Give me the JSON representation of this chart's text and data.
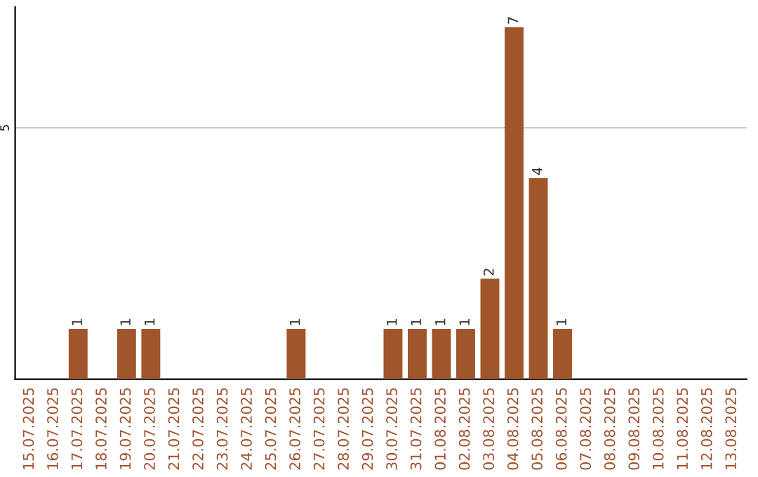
{
  "chart_data": {
    "type": "bar",
    "categories": [
      "15.07.2025",
      "16.07.2025",
      "17.07.2025",
      "18.07.2025",
      "19.07.2025",
      "20.07.2025",
      "21.07.2025",
      "22.07.2025",
      "23.07.2025",
      "24.07.2025",
      "25.07.2025",
      "26.07.2025",
      "27.07.2025",
      "28.07.2025",
      "29.07.2025",
      "30.07.2025",
      "31.07.2025",
      "01.08.2025",
      "02.08.2025",
      "03.08.2025",
      "04.08.2025",
      "05.08.2025",
      "06.08.2025",
      "07.08.2025",
      "08.08.2025",
      "09.08.2025",
      "10.08.2025",
      "11.08.2025",
      "12.08.2025",
      "13.08.2025"
    ],
    "values": [
      0,
      0,
      1,
      0,
      1,
      1,
      0,
      0,
      0,
      0,
      0,
      1,
      0,
      0,
      0,
      1,
      1,
      1,
      1,
      2,
      7,
      4,
      1,
      0,
      0,
      0,
      0,
      0,
      0,
      0
    ],
    "value_labels": [
      null,
      null,
      "1",
      null,
      "1",
      "1",
      null,
      null,
      null,
      null,
      null,
      "1",
      null,
      null,
      null,
      "1",
      "1",
      "1",
      "1",
      "2",
      "7",
      "4",
      "1",
      null,
      null,
      null,
      null,
      null,
      null,
      null
    ],
    "color": "#a0562a",
    "ylim": [
      0,
      7.4
    ],
    "yticks": [
      5
    ],
    "grid": "y"
  }
}
